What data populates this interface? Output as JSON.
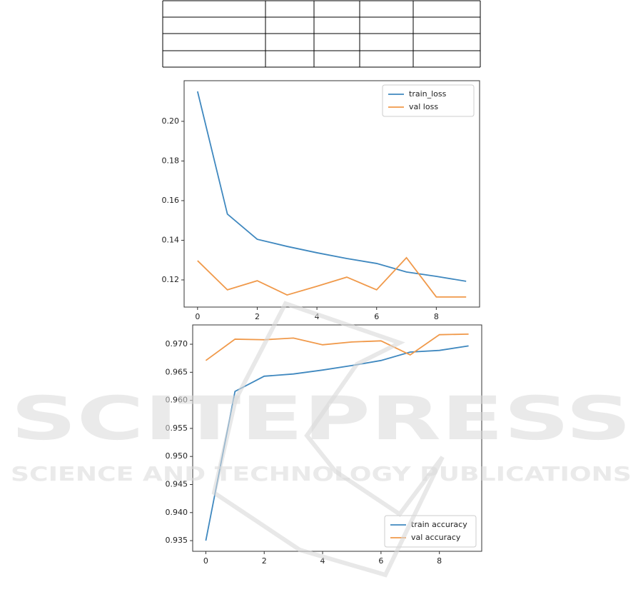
{
  "chart_data": [
    {
      "type": "line",
      "x": [
        0,
        1,
        2,
        3,
        4,
        5,
        6,
        7,
        8,
        9
      ],
      "series": [
        {
          "name": "train_loss",
          "color": "#3f88bf",
          "values": [
            0.2151,
            0.1532,
            0.1405,
            0.1369,
            0.1337,
            0.1308,
            0.1283,
            0.124,
            0.1218,
            0.1193
          ]
        },
        {
          "name": "val loss",
          "color": "#f0994a",
          "values": [
            0.1297,
            0.115,
            0.1196,
            0.1124,
            0.1168,
            0.1214,
            0.115,
            0.1312,
            0.1114,
            0.1114
          ]
        }
      ],
      "xlim": [
        -0.45,
        9.45
      ],
      "xticks": [
        0,
        2,
        4,
        6,
        8
      ],
      "ylim": [
        0.1063,
        0.2205
      ],
      "yticks": [
        0.12,
        0.14,
        0.16,
        0.18,
        {
          "value": 0.2,
          "label": "0.20"
        }
      ],
      "legend": "upper-right"
    },
    {
      "type": "line",
      "x": [
        0,
        1,
        2,
        3,
        4,
        5,
        6,
        7,
        8,
        9
      ],
      "series": [
        {
          "name": "train accuracy",
          "color": "#3f88bf",
          "values": [
            0.935,
            0.9616,
            0.9643,
            0.9647,
            0.9654,
            0.9662,
            0.9671,
            0.9686,
            0.9689,
            0.9697
          ]
        },
        {
          "name": "val accuracy",
          "color": "#f0994a",
          "values": [
            0.9671,
            0.9709,
            0.9708,
            0.9711,
            0.9699,
            0.9704,
            0.9706,
            0.9681,
            0.9717,
            0.9718
          ]
        }
      ],
      "xlim": [
        -0.45,
        9.45
      ],
      "xticks": [
        0,
        2,
        4,
        6,
        8
      ],
      "ylim": [
        0.9331,
        0.97344
      ],
      "yticks": [
        0.935,
        {
          "value": 0.94,
          "label": "0.940"
        },
        0.945,
        {
          "value": 0.95,
          "label": "0.950"
        },
        0.955,
        {
          "value": 0.96,
          "label": "0.960"
        },
        0.965,
        {
          "value": 0.97,
          "label": "0.970"
        }
      ],
      "legend": "lower-right"
    }
  ],
  "watermark": {
    "title": "SCITEPRESS",
    "subtitle": "SCIENCE AND TECHNOLOGY PUBLICATIONS"
  }
}
